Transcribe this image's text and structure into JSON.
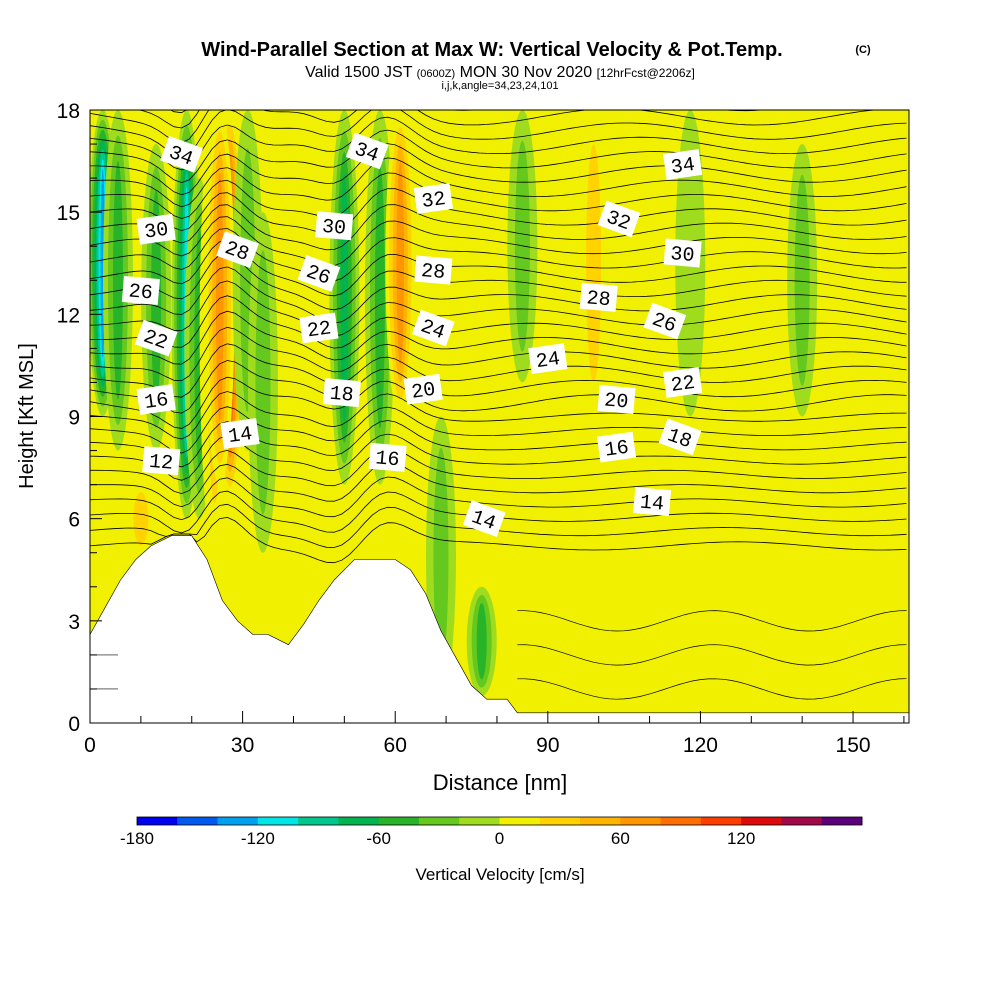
{
  "title": "Wind-Parallel Section at Max W: Vertical Velocity & Pot.Temp.",
  "copyright": "(C)",
  "subtitle": {
    "valid": "Valid 1500 JST",
    "utc": "(0600Z)",
    "date": "MON 30 Nov 2020",
    "forecast": "[12hrFcst@2206z]"
  },
  "indices": "i,j,k,angle=34,23,24,101",
  "chart_data": {
    "type": "heatmap",
    "xlabel": "Distance [nm]",
    "ylabel": "Height [Kft MSL]",
    "xlim": [
      0,
      161
    ],
    "ylim": [
      0,
      18
    ],
    "xticks": [
      "0",
      "30",
      "60",
      "90",
      "120",
      "150"
    ],
    "yticks": [
      "0",
      "3",
      "6",
      "9",
      "12",
      "15",
      "18"
    ],
    "terrain_kft": [
      [
        0,
        2.6
      ],
      [
        3,
        3.4
      ],
      [
        6,
        4.2
      ],
      [
        9,
        4.8
      ],
      [
        12,
        5.2
      ],
      [
        16,
        5.5
      ],
      [
        20,
        5.5
      ],
      [
        23,
        4.8
      ],
      [
        26,
        3.6
      ],
      [
        29,
        3.0
      ],
      [
        32,
        2.6
      ],
      [
        35,
        2.6
      ],
      [
        39,
        2.3
      ],
      [
        42,
        2.9
      ],
      [
        45,
        3.6
      ],
      [
        48,
        4.2
      ],
      [
        52,
        4.8
      ],
      [
        56,
        4.8
      ],
      [
        60,
        4.8
      ],
      [
        63,
        4.5
      ],
      [
        66,
        3.8
      ],
      [
        69,
        2.7
      ],
      [
        72,
        1.9
      ],
      [
        75,
        1.1
      ],
      [
        78,
        0.7
      ],
      [
        82,
        0.7
      ],
      [
        84,
        0.3
      ],
      [
        161,
        0.3
      ]
    ],
    "theta_contour_labels": [
      {
        "label": "34",
        "x": 18,
        "y": 16.7
      },
      {
        "label": "30",
        "x": 13,
        "y": 14.5
      },
      {
        "label": "26",
        "x": 10,
        "y": 12.7
      },
      {
        "label": "22",
        "x": 13,
        "y": 11.3
      },
      {
        "label": "16",
        "x": 13,
        "y": 9.5
      },
      {
        "label": "12",
        "x": 14,
        "y": 7.7
      },
      {
        "label": "28",
        "x": 29,
        "y": 13.9
      },
      {
        "label": "14",
        "x": 29.5,
        "y": 8.5
      },
      {
        "label": "30",
        "x": 48,
        "y": 14.6
      },
      {
        "label": "26",
        "x": 45,
        "y": 13.2
      },
      {
        "label": "22",
        "x": 45,
        "y": 11.6
      },
      {
        "label": "18",
        "x": 49.5,
        "y": 9.7
      },
      {
        "label": "34",
        "x": 54.5,
        "y": 16.8
      },
      {
        "label": "32",
        "x": 67.5,
        "y": 15.4
      },
      {
        "label": "28",
        "x": 67.5,
        "y": 13.3
      },
      {
        "label": "24",
        "x": 67.5,
        "y": 11.6
      },
      {
        "label": "20",
        "x": 65.5,
        "y": 9.8
      },
      {
        "label": "16",
        "x": 58.5,
        "y": 7.8
      },
      {
        "label": "14",
        "x": 77.5,
        "y": 6.0
      },
      {
        "label": "24",
        "x": 90,
        "y": 10.7
      },
      {
        "label": "28",
        "x": 100,
        "y": 12.5
      },
      {
        "label": "32",
        "x": 104,
        "y": 14.8
      },
      {
        "label": "34",
        "x": 116.5,
        "y": 16.4
      },
      {
        "label": "30",
        "x": 116.5,
        "y": 13.8
      },
      {
        "label": "26",
        "x": 113,
        "y": 11.8
      },
      {
        "label": "22",
        "x": 116.5,
        "y": 10.0
      },
      {
        "label": "20",
        "x": 103.5,
        "y": 9.5
      },
      {
        "label": "18",
        "x": 116,
        "y": 8.4
      },
      {
        "label": "16",
        "x": 103.5,
        "y": 8.1
      },
      {
        "label": "14",
        "x": 110.5,
        "y": 6.5
      }
    ],
    "velocity_features_cms": [
      {
        "x": 2.5,
        "y_min": 9,
        "y_max": 18,
        "w": -125
      },
      {
        "x": 5.5,
        "y_min": 8,
        "y_max": 18,
        "w": -60
      },
      {
        "x": 13,
        "y_min": 8,
        "y_max": 17,
        "w": -45
      },
      {
        "x": 19,
        "y_min": 6,
        "y_max": 18,
        "w": -110
      },
      {
        "x": 21.5,
        "y_min": 6,
        "y_max": 16,
        "w": -55
      },
      {
        "x": 24.5,
        "y_min": 5,
        "y_max": 18,
        "w": 25
      },
      {
        "x": 27.5,
        "y_min": 6.5,
        "y_max": 18,
        "w": 110
      },
      {
        "x": 25.5,
        "y_min": 7,
        "y_max": 18,
        "w": 70
      },
      {
        "x": 31,
        "y_min": 8,
        "y_max": 18,
        "w": -25
      },
      {
        "x": 34,
        "y_min": 5,
        "y_max": 15,
        "w": -40
      },
      {
        "x": 50,
        "y_min": 7,
        "y_max": 18,
        "w": -65
      },
      {
        "x": 57,
        "y_min": 7,
        "y_max": 18,
        "w": -45
      },
      {
        "x": 61,
        "y_min": 9,
        "y_max": 18,
        "w": 75
      },
      {
        "x": 69,
        "y_min": 0.8,
        "y_max": 9,
        "w": -40
      },
      {
        "x": 77,
        "y_min": 0.8,
        "y_max": 4,
        "w": -60
      },
      {
        "x": 85,
        "y_min": 10,
        "y_max": 18,
        "w": -30
      },
      {
        "x": 99,
        "y_min": 9,
        "y_max": 18,
        "w": 25
      },
      {
        "x": 118,
        "y_min": 9,
        "y_max": 18,
        "w": -15
      },
      {
        "x": 140,
        "y_min": 9,
        "y_max": 17,
        "w": -35
      },
      {
        "x": 119,
        "y_min": 0.3,
        "y_max": 6,
        "w": 20
      },
      {
        "x": 147,
        "y_min": 0.3,
        "y_max": 6,
        "w": 20
      },
      {
        "x": 10,
        "y_min": 5,
        "y_max": 7,
        "w": 25
      }
    ],
    "colorbar": {
      "label": "Vertical Velocity [cm/s]",
      "ticks": [
        "-180",
        "-120",
        "-60",
        "0",
        "60",
        "120"
      ],
      "colors": [
        "#0000f0",
        "#005af0",
        "#00a0f0",
        "#00e6e6",
        "#00c88c",
        "#00b450",
        "#28b428",
        "#64c81e",
        "#a0dc1e",
        "#f0f000",
        "#ffd200",
        "#ffb400",
        "#ff9600",
        "#ff6e00",
        "#ff3c00",
        "#dc0a0a",
        "#a00a46",
        "#5a007a"
      ]
    }
  }
}
